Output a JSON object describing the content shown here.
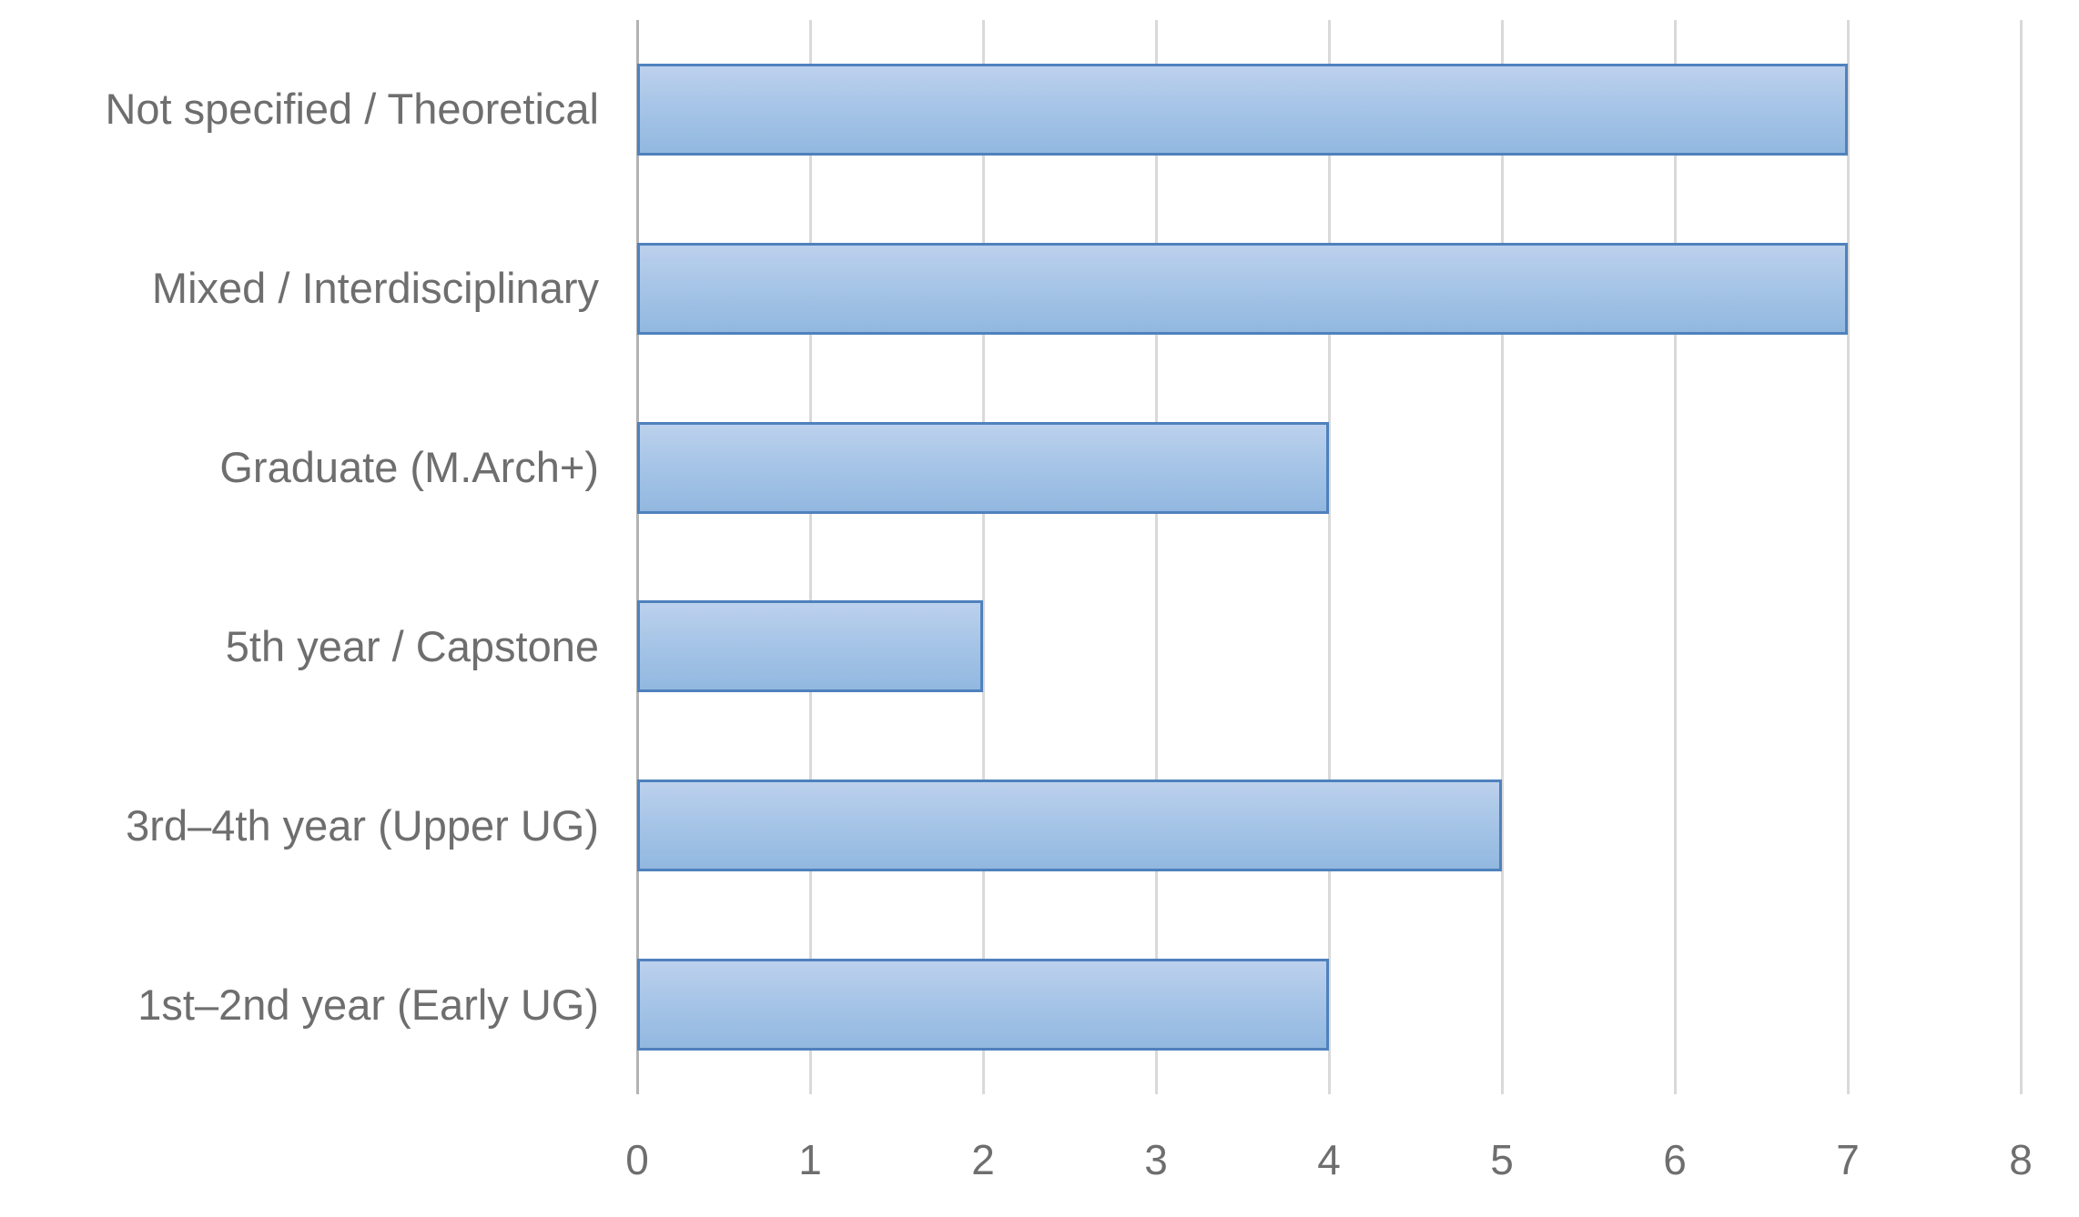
{
  "chart_data": {
    "type": "bar",
    "orientation": "horizontal",
    "title": "",
    "xlabel": "",
    "ylabel": "",
    "categories": [
      "Not specified / Theoretical",
      "Mixed / Interdisciplinary",
      "Graduate (M.Arch+)",
      "5th year / Capstone",
      "3rd–4th year (Upper UG)",
      "1st–2nd year (Early UG)"
    ],
    "values": [
      7,
      7,
      4,
      2,
      5,
      4
    ],
    "xlim": [
      0,
      8
    ],
    "xticks": [
      0,
      1,
      2,
      3,
      4,
      5,
      6,
      7,
      8
    ],
    "grid": true,
    "legend": false,
    "colors": {
      "bar_fill_light": "#bcd1ed",
      "bar_fill_dark": "#92b8e0",
      "bar_border": "#4f81bd",
      "gridline": "#d9d9d9",
      "axis_line": "#b3b3b3",
      "label_text": "#6e6e6e",
      "background": "#ffffff"
    }
  }
}
